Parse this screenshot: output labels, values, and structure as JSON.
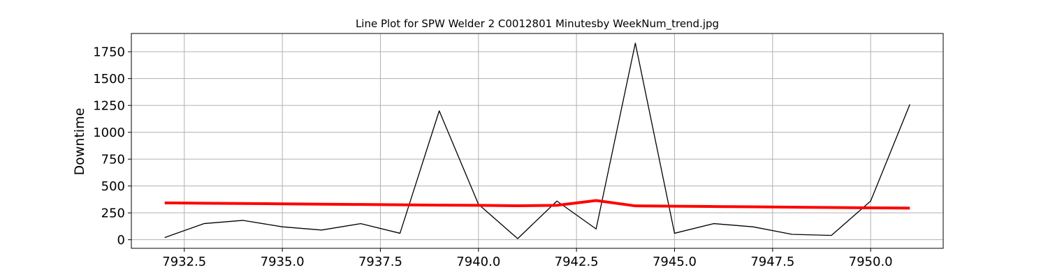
{
  "chart_data": {
    "type": "line",
    "title": "Line Plot for SPW Welder 2 C0012801 Minutesby WeekNum_trend.jpg",
    "xlabel": "",
    "ylabel": "Downtime",
    "xlim": [
      7931.15,
      7951.85
    ],
    "ylim": [
      -80,
      1920
    ],
    "xticks": [
      7932.5,
      7935.0,
      7937.5,
      7940.0,
      7942.5,
      7945.0,
      7947.5,
      7950.0
    ],
    "xtick_labels": [
      "7932.5",
      "7935.0",
      "7937.5",
      "7940.0",
      "7942.5",
      "7945.0",
      "7947.5",
      "7950.0"
    ],
    "yticks": [
      0,
      250,
      500,
      750,
      1000,
      1250,
      1500,
      1750
    ],
    "ytick_labels": [
      "0",
      "250",
      "500",
      "750",
      "1000",
      "1250",
      "1500",
      "1750"
    ],
    "grid": true,
    "series": [
      {
        "color": "#000000",
        "x": [
          7932,
          7933,
          7934,
          7935,
          7936,
          7937,
          7938,
          7939,
          7940,
          7941,
          7942,
          7943,
          7944,
          7945,
          7946,
          7947,
          7948,
          7949,
          7950,
          7951
        ],
        "y": [
          20,
          150,
          180,
          120,
          90,
          150,
          60,
          1200,
          330,
          10,
          360,
          100,
          1830,
          60,
          150,
          120,
          50,
          40,
          360,
          1260
        ]
      },
      {
        "color": "#ff0000",
        "x": [
          7932,
          7933,
          7934,
          7935,
          7936,
          7937,
          7938,
          7939,
          7940,
          7941,
          7942,
          7943,
          7944,
          7945,
          7946,
          7947,
          7948,
          7949,
          7950,
          7951
        ],
        "y": [
          343,
          340,
          337,
          334,
          331,
          328,
          325,
          322,
          320,
          316,
          320,
          365,
          315,
          312,
          309,
          306,
          303,
          300,
          297,
          294
        ]
      }
    ]
  }
}
